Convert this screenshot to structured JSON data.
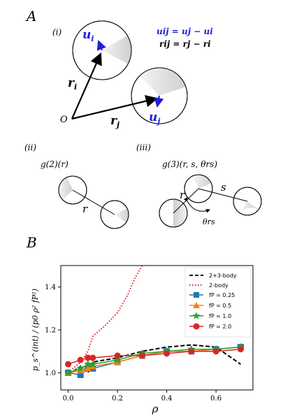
{
  "panel_a": {
    "letter": "A",
    "sub_i": "(i)",
    "sub_ii": "(ii)",
    "sub_iii": "(iii)",
    "label_u_i": "u",
    "label_u_i_sub": "i",
    "label_u_j": "u",
    "label_u_j_sub": "j",
    "label_r_i": "r",
    "label_r_i_sub": "i",
    "label_r_j": "r",
    "label_r_j_sub": "j",
    "label_O": "O",
    "eq_u": "uij = uj − ui",
    "eq_r": "rij = rj − ri",
    "g2_label": "g(2)(r)",
    "g3_label": "g(3)(r, s, θrs)",
    "r_ii": "r",
    "r_iii": "r",
    "s_iii": "s",
    "theta_iii": "θrs",
    "colors": {
      "blue": "#1f1fd6",
      "black": "#000000"
    }
  },
  "panel_b": {
    "letter": "B",
    "ylabel": "p_s^(int) / (p0 ρ² fP²)",
    "xlabel": "ρ"
  },
  "chart_data": {
    "type": "line",
    "xlim": [
      -0.03,
      0.75
    ],
    "ylim": [
      0.92,
      1.5
    ],
    "x_ticks": [
      "0.0",
      "0.2",
      "0.4",
      "0.6"
    ],
    "y_ticks": [
      "1.0",
      "1.2",
      "1.4"
    ],
    "legend_position": "top-right",
    "series": [
      {
        "name": "2+3-body",
        "style": "dashed",
        "color": "#000000",
        "x": [
          0.0,
          0.05,
          0.08,
          0.1,
          0.2,
          0.3,
          0.4,
          0.5,
          0.6,
          0.7
        ],
        "y": [
          0.99,
          1.03,
          1.0,
          1.05,
          1.07,
          1.1,
          1.12,
          1.13,
          1.12,
          1.04
        ]
      },
      {
        "name": "2-body",
        "style": "dotted",
        "color": "#e31a1c",
        "x": [
          0.0,
          0.05,
          0.08,
          0.1,
          0.15,
          0.2,
          0.24,
          0.27,
          0.3
        ],
        "y": [
          1.0,
          1.05,
          1.1,
          1.17,
          1.22,
          1.28,
          1.36,
          1.44,
          1.5
        ]
      },
      {
        "name": "fP = 0.25",
        "marker": "square",
        "color": "#1f77b4",
        "x": [
          0.0,
          0.05,
          0.08,
          0.1,
          0.2,
          0.3,
          0.4,
          0.5,
          0.6,
          0.7
        ],
        "y": [
          1.0,
          0.99,
          1.02,
          1.02,
          1.05,
          1.08,
          1.1,
          1.1,
          1.11,
          1.12
        ]
      },
      {
        "name": "fP = 0.5",
        "marker": "triangle",
        "color": "#ff7f0e",
        "x": [
          0.0,
          0.05,
          0.08,
          0.1,
          0.2,
          0.3,
          0.4,
          0.5,
          0.6,
          0.7
        ],
        "y": [
          1.0,
          1.01,
          1.02,
          1.03,
          1.05,
          1.08,
          1.1,
          1.1,
          1.11,
          1.12
        ]
      },
      {
        "name": "fP = 1.0",
        "marker": "star",
        "color": "#2ca02c",
        "x": [
          0.0,
          0.05,
          0.08,
          0.1,
          0.2,
          0.3,
          0.4,
          0.5,
          0.6,
          0.7
        ],
        "y": [
          1.0,
          1.02,
          1.04,
          1.04,
          1.06,
          1.09,
          1.1,
          1.11,
          1.11,
          1.12
        ]
      },
      {
        "name": "fP = 2.0",
        "marker": "circle",
        "color": "#d62728",
        "x": [
          0.0,
          0.05,
          0.08,
          0.1,
          0.2,
          0.3,
          0.4,
          0.5,
          0.6,
          0.7
        ],
        "y": [
          1.04,
          1.06,
          1.07,
          1.07,
          1.08,
          1.08,
          1.09,
          1.1,
          1.1,
          1.11
        ]
      }
    ]
  }
}
